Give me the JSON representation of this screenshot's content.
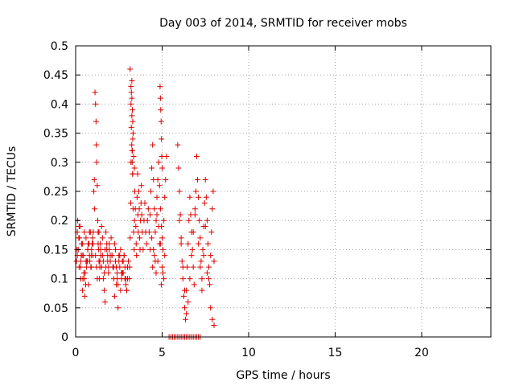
{
  "chart_data": {
    "type": "scatter",
    "title": "Day 003 of 2014, SRMTID for receiver mobs",
    "xlabel": "GPS time / hours",
    "ylabel": "SRMTID / TECUs",
    "xlim": [
      0,
      24
    ],
    "ylim": [
      0,
      0.5
    ],
    "x_ticks": [
      0,
      5,
      10,
      15,
      20
    ],
    "x_tick_labels": [
      "0",
      "5",
      "10",
      "15",
      "20"
    ],
    "y_ticks": [
      0,
      0.05,
      0.1,
      0.15,
      0.2,
      0.25,
      0.3,
      0.35,
      0.4,
      0.45,
      0.5
    ],
    "y_tick_labels": [
      "0",
      "0.05",
      "0.1",
      "0.15",
      "0.2",
      "0.25",
      "0.3",
      "0.35",
      "0.4",
      "0.45",
      "0.5"
    ],
    "grid": true,
    "marker": "+",
    "marker_color": "#dd0000",
    "series": [
      {
        "x": [
          0.05,
          0.1,
          0.15,
          0.2,
          0.25,
          0.3,
          0.35,
          0.4,
          0.45,
          0.5,
          0.55,
          0.6,
          0.65,
          0.7,
          0.75,
          0.8,
          0.85,
          0.9,
          0.95,
          1.0,
          0.08,
          0.18,
          0.28,
          0.38,
          0.48,
          0.58,
          0.68,
          0.78,
          0.88,
          0.98,
          0.12,
          0.22,
          0.32,
          0.42,
          0.52,
          0.62,
          0.72,
          0.82,
          0.92,
          1.02,
          0.1,
          0.2,
          0.3,
          0.4,
          0.5,
          0.6,
          0.7,
          0.8,
          0.9,
          1.0,
          1.05,
          1.08,
          1.1,
          1.12,
          1.15,
          1.18,
          1.2,
          1.22,
          1.25,
          1.28,
          1.3,
          1.32,
          1.35,
          1.38,
          1.4,
          1.42,
          1.45,
          1.5,
          1.55,
          1.6,
          1.65,
          1.7,
          1.75,
          1.8,
          1.85,
          1.9,
          1.95,
          2.0,
          2.05,
          2.1,
          1.15,
          1.2,
          1.25,
          1.3,
          1.35,
          1.4,
          1.45,
          1.5,
          1.55,
          1.6,
          1.65,
          1.7,
          1.75,
          1.8,
          1.85,
          1.9,
          1.95,
          2.0,
          2.1,
          2.15,
          2.2,
          2.25,
          2.3,
          2.35,
          2.4,
          2.45,
          2.5,
          2.55,
          2.6,
          2.65,
          2.7,
          2.75,
          2.8,
          2.85,
          2.9,
          2.95,
          3.0,
          3.05,
          2.2,
          2.3,
          2.4,
          2.5,
          2.6,
          2.7,
          2.8,
          2.9,
          3.0,
          2.25,
          2.35,
          2.45,
          2.55,
          2.65,
          2.75,
          2.85,
          2.95,
          3.1,
          3.12,
          3.15,
          3.18,
          3.2,
          3.22,
          3.25,
          3.28,
          3.3,
          3.32,
          3.35,
          3.38,
          3.4,
          3.42,
          3.45,
          3.48,
          3.5,
          3.52,
          3.55,
          3.58,
          3.6,
          3.62,
          3.65,
          3.68,
          3.7,
          3.72,
          3.75,
          3.78,
          3.8,
          3.82,
          3.85,
          3.9,
          3.95,
          4.0,
          4.05,
          4.1,
          4.15,
          4.2,
          4.25,
          4.3,
          3.15,
          3.2,
          3.25,
          3.3,
          3.35,
          3.4,
          3.2,
          3.22,
          3.25,
          3.28,
          3.3,
          3.32,
          3.24,
          3.26,
          3.27,
          3.29,
          4.3,
          4.35,
          4.4,
          4.45,
          4.5,
          4.55,
          4.6,
          4.65,
          4.7,
          4.75,
          4.8,
          4.85,
          4.9,
          4.95,
          5.0,
          5.05,
          5.1,
          5.15,
          5.2,
          5.25,
          4.4,
          4.5,
          4.6,
          4.7,
          4.8,
          4.9,
          5.0,
          5.1,
          4.45,
          4.55,
          4.65,
          4.75,
          4.85,
          4.95,
          5.05,
          5.15,
          4.88,
          4.9,
          4.92,
          4.94,
          4.96,
          4.98,
          5.0,
          5.9,
          5.95,
          6.0,
          6.05,
          6.1,
          6.15,
          6.2,
          6.25,
          6.3,
          6.35,
          6.4,
          6.45,
          6.5,
          6.55,
          6.6,
          6.65,
          6.7,
          6.75,
          6.8,
          6.85,
          6.9,
          6.95,
          6.0,
          6.1,
          6.2,
          6.3,
          6.4,
          6.5,
          6.6,
          6.7,
          6.8,
          6.9,
          7.0,
          7.05,
          7.1,
          7.15,
          7.2,
          7.25,
          7.3,
          7.35,
          7.4,
          7.45,
          7.5,
          7.55,
          7.6,
          7.65,
          7.7,
          7.75,
          7.8,
          7.85,
          7.9,
          7.95,
          8.0,
          7.1,
          7.2,
          7.3,
          7.4,
          7.5,
          7.6,
          7.7,
          7.8,
          7.9,
          8.0,
          5.4,
          5.5,
          5.6,
          5.7,
          5.8,
          5.9,
          6.0,
          6.1,
          6.2,
          6.3,
          6.4,
          6.5,
          6.6,
          6.7,
          6.8,
          6.9,
          7.0,
          7.1,
          7.2
        ],
        "y": [
          0.13,
          0.18,
          0.15,
          0.12,
          0.19,
          0.1,
          0.16,
          0.08,
          0.14,
          0.18,
          0.11,
          0.17,
          0.13,
          0.15,
          0.09,
          0.14,
          0.18,
          0.12,
          0.16,
          0.14,
          0.15,
          0.17,
          0.12,
          0.14,
          0.11,
          0.09,
          0.13,
          0.16,
          0.12,
          0.17,
          0.2,
          0.17,
          0.14,
          0.1,
          0.07,
          0.12,
          0.16,
          0.13,
          0.15,
          0.18,
          0.14,
          0.19,
          0.13,
          0.16,
          0.1,
          0.13,
          0.15,
          0.18,
          0.14,
          0.16,
          0.25,
          0.27,
          0.22,
          0.42,
          0.4,
          0.37,
          0.33,
          0.3,
          0.26,
          0.2,
          0.18,
          0.15,
          0.13,
          0.1,
          0.12,
          0.16,
          0.14,
          0.19,
          0.17,
          0.13,
          0.11,
          0.15,
          0.18,
          0.16,
          0.14,
          0.12,
          0.15,
          0.13,
          0.17,
          0.14,
          0.14,
          0.12,
          0.1,
          0.16,
          0.18,
          0.13,
          0.15,
          0.12,
          0.14,
          0.1,
          0.08,
          0.06,
          0.12,
          0.15,
          0.13,
          0.11,
          0.16,
          0.14,
          0.14,
          0.12,
          0.1,
          0.16,
          0.13,
          0.09,
          0.11,
          0.05,
          0.14,
          0.12,
          0.15,
          0.1,
          0.13,
          0.11,
          0.14,
          0.12,
          0.09,
          0.08,
          0.1,
          0.13,
          0.12,
          0.15,
          0.1,
          0.13,
          0.08,
          0.11,
          0.14,
          0.1,
          0.12,
          0.07,
          0.12,
          0.09,
          0.14,
          0.11,
          0.13,
          0.1,
          0.08,
          0.1,
          0.12,
          0.17,
          0.23,
          0.3,
          0.36,
          0.44,
          0.32,
          0.28,
          0.22,
          0.18,
          0.15,
          0.2,
          0.25,
          0.22,
          0.19,
          0.16,
          0.14,
          0.24,
          0.28,
          0.21,
          0.18,
          0.25,
          0.22,
          0.17,
          0.15,
          0.2,
          0.23,
          0.26,
          0.21,
          0.18,
          0.15,
          0.2,
          0.23,
          0.18,
          0.16,
          0.2,
          0.22,
          0.18,
          0.15,
          0.46,
          0.4,
          0.38,
          0.34,
          0.31,
          0.29,
          0.43,
          0.42,
          0.41,
          0.39,
          0.37,
          0.35,
          0.33,
          0.32,
          0.3,
          0.28,
          0.21,
          0.25,
          0.29,
          0.33,
          0.27,
          0.22,
          0.18,
          0.2,
          0.24,
          0.27,
          0.3,
          0.26,
          0.22,
          0.19,
          0.17,
          0.15,
          0.2,
          0.24,
          0.27,
          0.31,
          0.17,
          0.15,
          0.13,
          0.21,
          0.19,
          0.16,
          0.12,
          0.1,
          0.12,
          0.14,
          0.11,
          0.13,
          0.16,
          0.09,
          0.11,
          0.14,
          0.43,
          0.41,
          0.39,
          0.37,
          0.34,
          0.31,
          0.29,
          0.33,
          0.29,
          0.25,
          0.21,
          0.17,
          0.13,
          0.1,
          0.07,
          0.05,
          0.03,
          0.08,
          0.12,
          0.16,
          0.2,
          0.24,
          0.21,
          0.18,
          0.15,
          0.12,
          0.09,
          0.22,
          0.25,
          0.2,
          0.16,
          0.12,
          0.08,
          0.04,
          0.06,
          0.1,
          0.14,
          0.18,
          0.21,
          0.31,
          0.27,
          0.24,
          0.2,
          0.17,
          0.13,
          0.1,
          0.15,
          0.19,
          0.23,
          0.27,
          0.24,
          0.2,
          0.16,
          0.12,
          0.09,
          0.14,
          0.18,
          0.22,
          0.25,
          0.13,
          0.16,
          0.12,
          0.08,
          0.14,
          0.19,
          0.11,
          0.1,
          0.05,
          0.03,
          0.02,
          0.0,
          0.0,
          0.0,
          0.0,
          0.0,
          0.0,
          0.0,
          0.0,
          0.0,
          0.0,
          0.0,
          0.0,
          0.0,
          0.0,
          0.0,
          0.0,
          0.0,
          0.0,
          0.0
        ]
      }
    ]
  }
}
